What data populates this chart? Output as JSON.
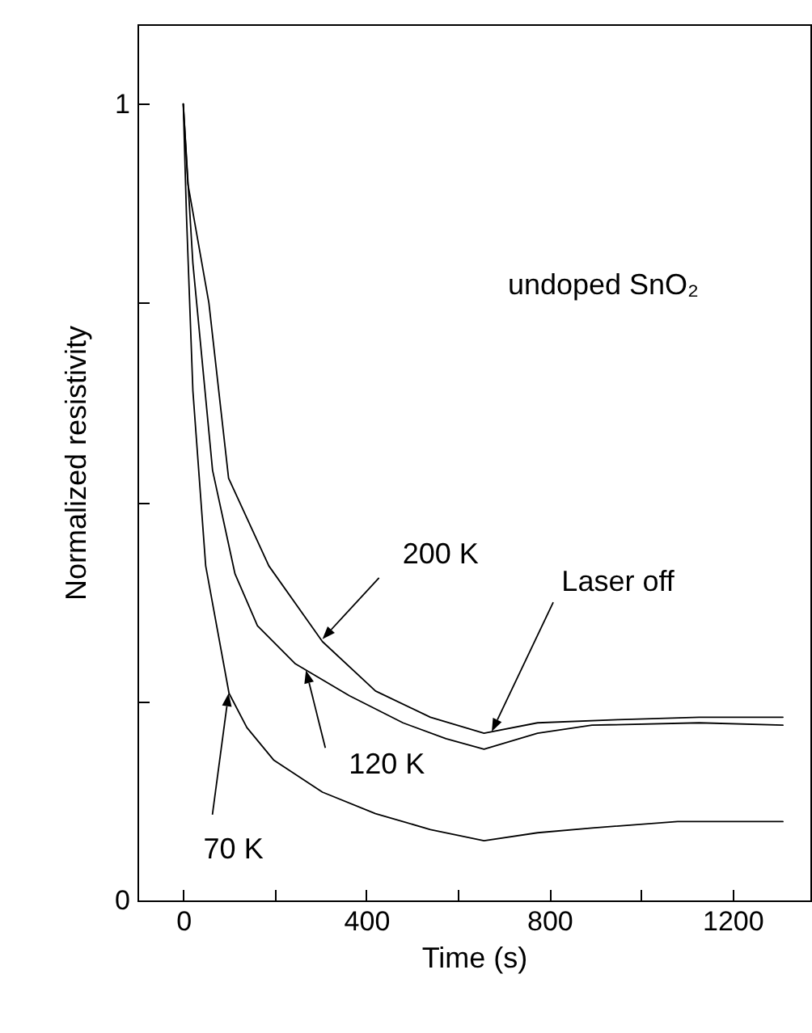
{
  "chart_data": {
    "type": "line",
    "xlabel": "Time (s)",
    "ylabel": "Normalized resistivity",
    "xlim": [
      -100,
      1370
    ],
    "ylim": [
      0,
      1.1
    ],
    "xticks": [
      0,
      {
        "value": 200,
        "label": null
      },
      400,
      {
        "value": 600,
        "label": null
      },
      800,
      {
        "value": 1000,
        "label": null
      },
      1200
    ],
    "yticks": [
      0,
      {
        "value": 0.25,
        "label": null
      },
      {
        "value": 0.5,
        "label": null
      },
      {
        "value": 0.75,
        "label": null
      },
      1
    ],
    "grid": false,
    "marker": "none",
    "line_style": "solid",
    "series": [
      {
        "color": "#000000",
        "x": [
          0,
          10,
          56,
          99,
          187,
          304,
          420,
          540,
          657,
          774,
          950,
          1127,
          1310
        ],
        "values": [
          1.0,
          0.9,
          0.75,
          0.53,
          0.42,
          0.325,
          0.263,
          0.23,
          0.21,
          0.223,
          0.227,
          0.23,
          0.23
        ]
      },
      {
        "color": "#000000",
        "x": [
          0,
          21,
          64,
          113,
          162,
          245,
          363,
          480,
          574,
          657,
          774,
          893,
          1127,
          1310
        ],
        "values": [
          1.0,
          0.8,
          0.54,
          0.41,
          0.345,
          0.297,
          0.257,
          0.223,
          0.203,
          0.19,
          0.21,
          0.22,
          0.223,
          0.22
        ]
      },
      {
        "color": "#000000",
        "x": [
          0,
          7,
          21,
          49,
          100,
          139,
          198,
          304,
          420,
          540,
          657,
          774,
          893,
          1080,
          1310
        ],
        "values": [
          1.0,
          0.86,
          0.64,
          0.42,
          0.26,
          0.217,
          0.176,
          0.136,
          0.109,
          0.089,
          0.075,
          0.085,
          0.091,
          0.099,
          0.099
        ]
      }
    ],
    "annotations": [
      "undoped SnO₂",
      {
        "text": "200 K",
        "x": 304,
        "y": 0.328
      },
      {
        "text": "120 K",
        "x": 268,
        "y": 0.289
      },
      {
        "text": "70 K",
        "x": 99,
        "y": 0.26
      },
      {
        "text": "Laser off",
        "x": 674,
        "y": 0.212
      }
    ]
  }
}
